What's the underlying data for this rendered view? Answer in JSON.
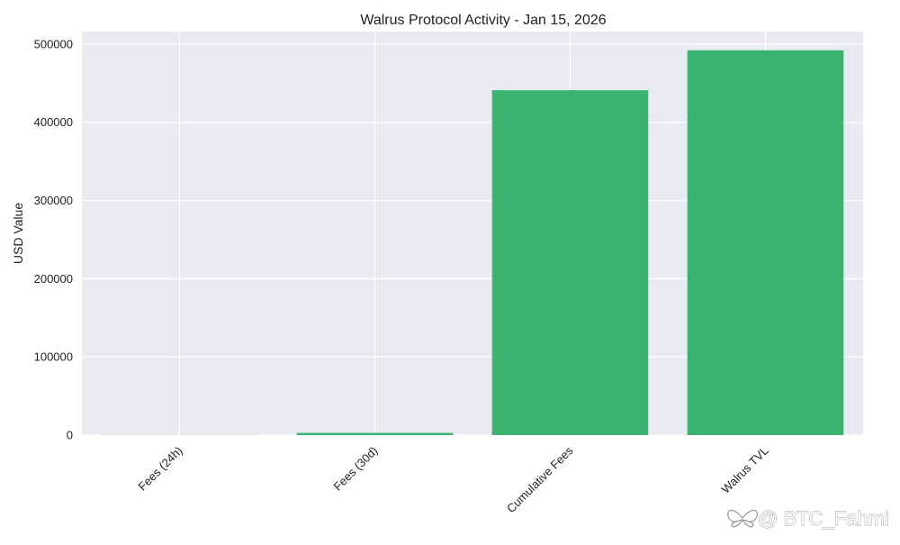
{
  "chart_data": {
    "type": "bar",
    "title": "Walrus Protocol Activity - Jan 15, 2026",
    "xlabel": "",
    "ylabel": "USD Value",
    "categories": [
      "Fees (24h)",
      "Fees (30d)",
      "Cumulative Fees",
      "Walrus TVL"
    ],
    "values": [
      150,
      2800,
      441000,
      492000
    ],
    "ylim": [
      0,
      516000
    ],
    "yticks": [
      0,
      100000,
      200000,
      300000,
      400000,
      500000
    ],
    "ytick_labels": [
      "0",
      "100000",
      "200000",
      "300000",
      "400000",
      "500000"
    ],
    "grid": true,
    "legend": "none",
    "colors": {
      "bar": "#3cb371",
      "plot_background": "#eaeaf2",
      "grid": "#ffffff",
      "text": "#222222"
    }
  },
  "watermark": {
    "text": "@ BTC_Fahmi",
    "icon": "butterfly-logo-icon"
  }
}
